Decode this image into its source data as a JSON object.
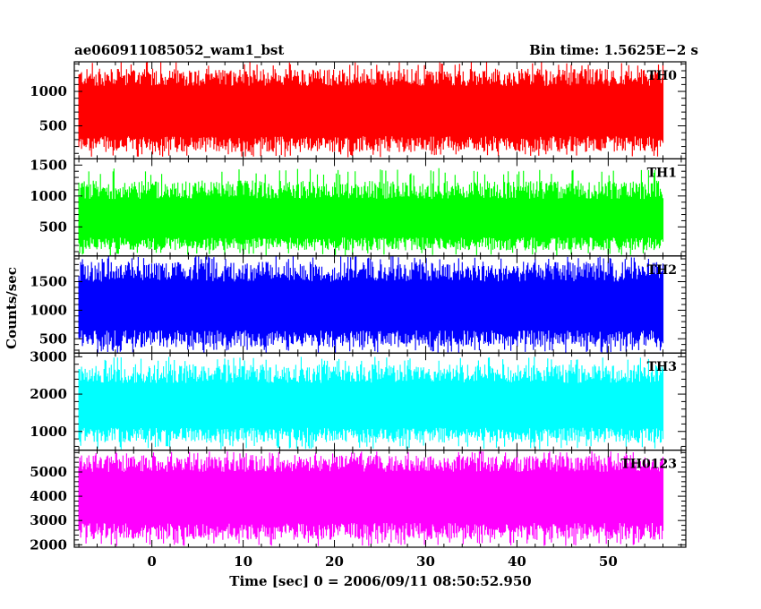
{
  "chart_data": {
    "type": "line",
    "title": "ae060911085052_wam1_bst",
    "bin_time_label": "Bin time: 1.5625E−2 s",
    "xlabel": "Time [sec] 0 = 2006/09/11 08:50:52.950",
    "ylabel": "Counts/sec",
    "xlim": [
      -8.5,
      58.5
    ],
    "data_xrange": [
      -8.0,
      56.0
    ],
    "x_ticks": [
      0,
      10,
      20,
      30,
      40,
      50
    ],
    "x_tick_labels": [
      "0",
      "10",
      "20",
      "30",
      "40",
      "50"
    ],
    "panels": [
      {
        "label": "TH0",
        "color": "#ff0000",
        "ylim": [
          20,
          1430
        ],
        "yticks": [
          500,
          1000
        ],
        "ytick_labels": [
          "500",
          "1000"
        ],
        "series": {
          "name": "TH0",
          "mean": 720,
          "high_env": [
            1080,
            1330
          ],
          "low_env": [
            120,
            350
          ],
          "spike_max": 1430,
          "spike_min": 40
        }
      },
      {
        "label": "TH1",
        "color": "#00ff00",
        "ylim": [
          30,
          1600
        ],
        "yticks": [
          500,
          1000,
          1500
        ],
        "ytick_labels": [
          "500",
          "1000",
          "1500"
        ],
        "series": {
          "name": "TH1",
          "mean": 600,
          "high_env": [
            950,
            1250
          ],
          "low_env": [
            120,
            330
          ],
          "spike_max": 1450,
          "spike_min": 40
        }
      },
      {
        "label": "TH2",
        "color": "#0000ff",
        "ylim": [
          250,
          1950
        ],
        "yticks": [
          500,
          1000,
          1500
        ],
        "ytick_labels": [
          "500",
          "1000",
          "1500"
        ],
        "series": {
          "name": "TH2",
          "mean": 1050,
          "high_env": [
            1500,
            1850
          ],
          "low_env": [
            350,
            650
          ],
          "spike_max": 1950,
          "spike_min": 250
        }
      },
      {
        "label": "TH3",
        "color": "#00ffff",
        "ylim": [
          500,
          3100
        ],
        "yticks": [
          1000,
          2000,
          3000
        ],
        "ytick_labels": [
          "1000",
          "2000",
          "3000"
        ],
        "series": {
          "name": "TH3",
          "mean": 1700,
          "high_env": [
            2300,
            2800
          ],
          "low_env": [
            700,
            1100
          ],
          "spike_max": 3000,
          "spike_min": 520
        }
      },
      {
        "label": "TH0123",
        "color": "#ff00ff",
        "ylim": [
          1900,
          5900
        ],
        "yticks": [
          2000,
          3000,
          4000,
          5000
        ],
        "ytick_labels": [
          "2000",
          "3000",
          "4000",
          "5000"
        ],
        "series": {
          "name": "TH0123",
          "mean": 3900,
          "high_env": [
            5000,
            5700
          ],
          "low_env": [
            2200,
            2900
          ],
          "spike_max": 5850,
          "spike_min": 1950
        }
      }
    ],
    "grid": false,
    "legend": "none"
  }
}
